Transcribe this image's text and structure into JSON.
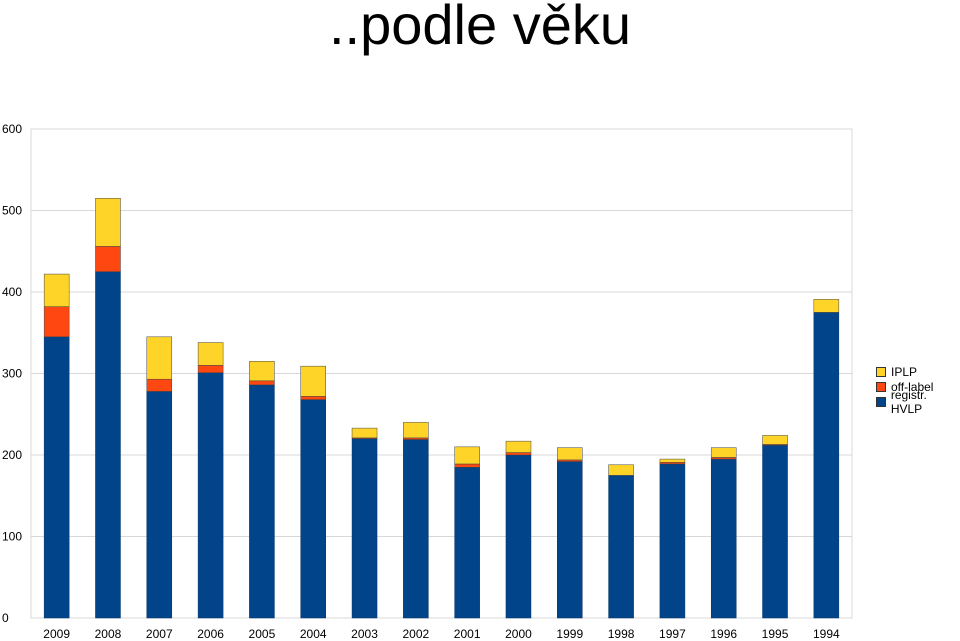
{
  "title": "..podle věku",
  "chart_data": {
    "type": "bar",
    "stacked": true,
    "categories": [
      "2009",
      "2008",
      "2007",
      "2006",
      "2005",
      "2004",
      "2003",
      "2002",
      "2001",
      "2000",
      "1999",
      "1998",
      "1997",
      "1996",
      "1995",
      "1994"
    ],
    "series": [
      {
        "name": "registr. HVLP",
        "color": "#02448A",
        "values": [
          345,
          425,
          278,
          301,
          286,
          268,
          220,
          219,
          185,
          200,
          192,
          175,
          189,
          195,
          212,
          375
        ]
      },
      {
        "name": "off-label",
        "color": "#FF4811",
        "values": [
          37,
          31,
          15,
          9,
          5,
          4,
          1,
          2,
          4,
          3,
          2,
          0,
          2,
          2,
          1,
          0
        ]
      },
      {
        "name": "IPLP",
        "color": "#FFD428",
        "values": [
          40,
          59,
          52,
          28,
          24,
          37,
          12,
          19,
          21,
          14,
          15,
          13,
          4,
          12,
          11,
          16
        ]
      }
    ],
    "yticks": [
      0,
      100,
      200,
      300,
      400,
      500,
      600
    ],
    "ylim": [
      0,
      600
    ],
    "grid": true,
    "legend": "right"
  }
}
